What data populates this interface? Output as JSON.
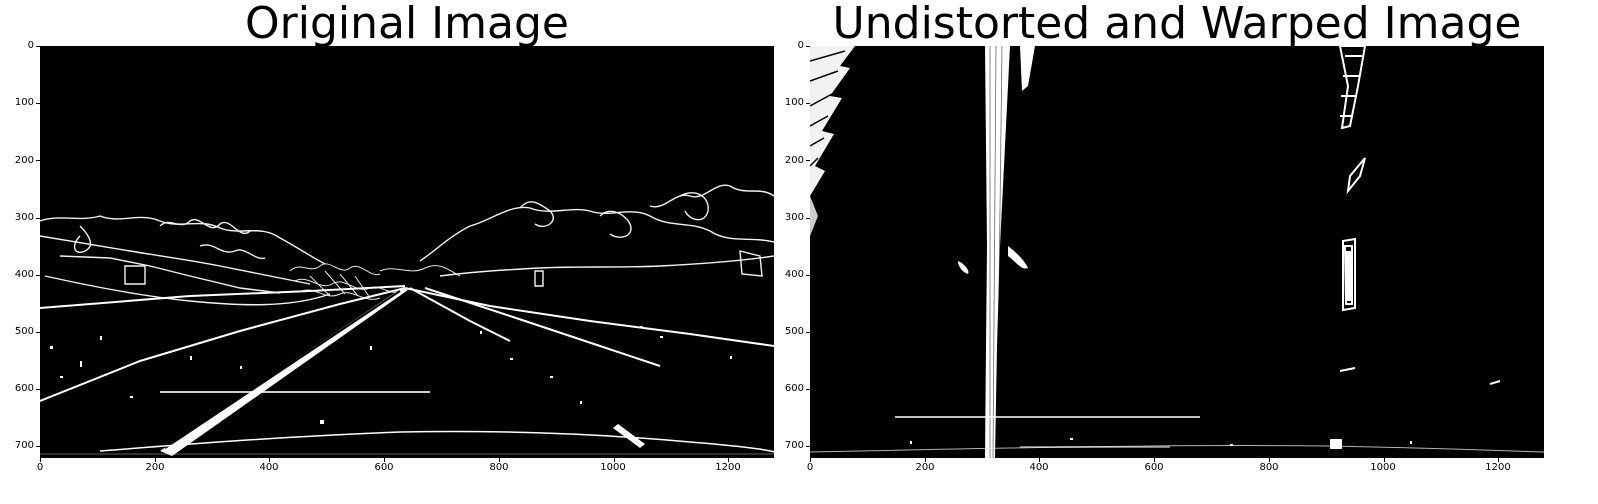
{
  "panels": [
    {
      "title": "Original Image",
      "xticks": [
        "0",
        "200",
        "400",
        "600",
        "800",
        "1000",
        "1200"
      ],
      "yticks": [
        "0",
        "100",
        "200",
        "300",
        "400",
        "500",
        "600",
        "700"
      ],
      "image": "binary-edge-road-scene"
    },
    {
      "title": "Undistorted and Warped Image",
      "xticks": [
        "0",
        "200",
        "400",
        "600",
        "800",
        "1000",
        "1200"
      ],
      "yticks": [
        "0",
        "100",
        "200",
        "300",
        "400",
        "500",
        "600",
        "700"
      ],
      "image": "binary-birds-eye-lane-lines"
    }
  ],
  "colors": {
    "background": "#000000",
    "foreground": "#ffffff"
  }
}
